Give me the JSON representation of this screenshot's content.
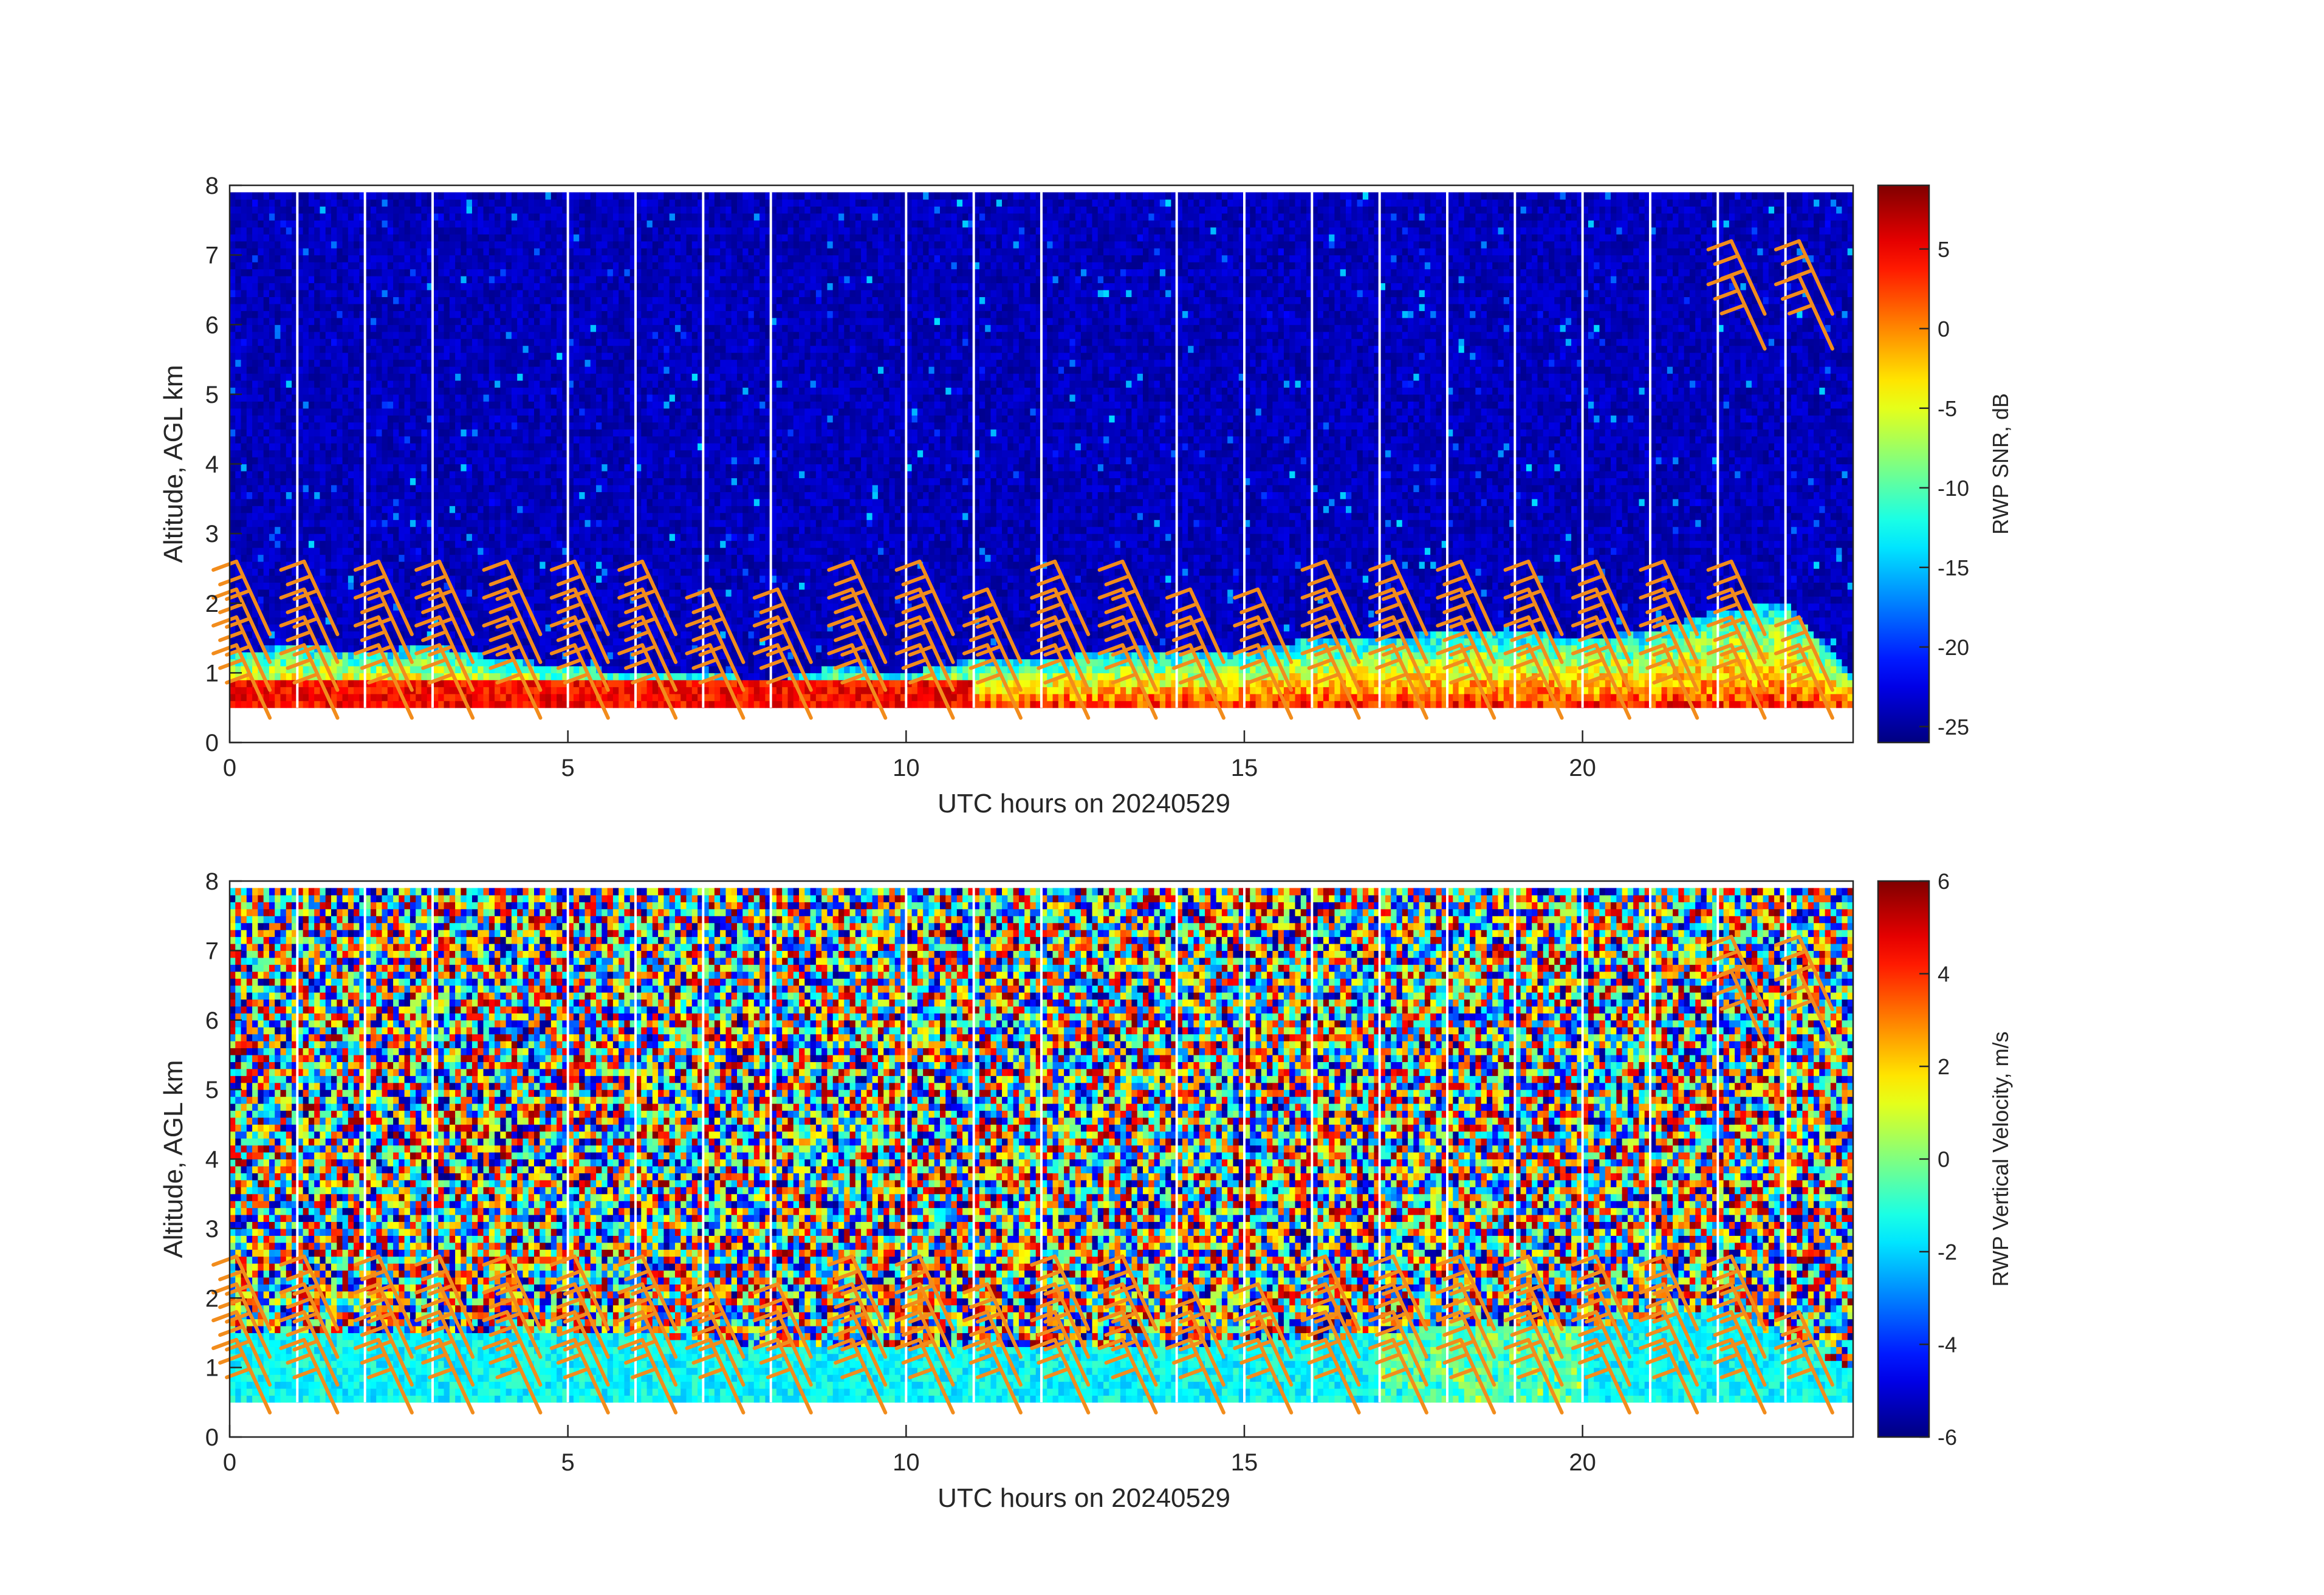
{
  "figure": {
    "colormap": "jet",
    "wind_barb_color": "#f28c1c",
    "gap_line_color": "#ffffff",
    "no_data_color": "#ffffff"
  },
  "chart_data": [
    {
      "type": "heatmap",
      "xlabel": "UTC hours on 20240529",
      "ylabel": "Altitude, AGL km",
      "xlim": [
        0,
        24
      ],
      "ylim": [
        0,
        8
      ],
      "xticks": [
        "0",
        "5",
        "10",
        "15",
        "20"
      ],
      "yticks": [
        "0",
        "1",
        "2",
        "3",
        "4",
        "5",
        "6",
        "7",
        "8"
      ],
      "colorbar_label": "RWP SNR, dB",
      "colorbar_ticks": [
        "5",
        "0",
        "-5",
        "-10",
        "-15",
        "-20",
        "-25"
      ],
      "colorbar_tick_values": [
        5,
        0,
        -5,
        -10,
        -15,
        -20,
        -25
      ],
      "colorbar_range": [
        -26,
        9
      ],
      "data_altitude_range_km": [
        0.5,
        7.9
      ],
      "gap_times_hours": [
        1,
        2,
        3,
        5,
        6,
        7,
        8,
        10,
        11,
        12,
        14,
        15,
        16,
        17,
        18,
        19,
        20,
        21,
        22,
        23
      ],
      "low_layer_top_km": [
        1.3,
        1.4,
        1.3,
        1.4,
        1.2,
        1.1,
        1.0,
        1.0,
        0.9,
        1.1,
        1.0,
        1.2,
        1.2,
        1.3,
        1.3,
        1.3,
        1.5,
        1.5,
        1.6,
        1.6,
        1.5,
        1.6,
        1.9,
        2.0,
        1.0
      ],
      "background_snr_db": -24,
      "wind_barbs": [
        {
          "t": 0.1,
          "z": [
            2.6,
            2.2,
            1.8,
            1.4
          ]
        },
        {
          "t": 1.1,
          "z": [
            2.6,
            2.2,
            1.8,
            1.4
          ]
        },
        {
          "t": 2.2,
          "z": [
            2.6,
            2.2,
            1.8,
            1.4
          ]
        },
        {
          "t": 3.1,
          "z": [
            2.6,
            2.2,
            1.8,
            1.4
          ]
        },
        {
          "t": 4.1,
          "z": [
            2.6,
            2.2,
            1.8,
            1.4
          ]
        },
        {
          "t": 5.1,
          "z": [
            2.6,
            2.2,
            1.8,
            1.4
          ]
        },
        {
          "t": 6.1,
          "z": [
            2.6,
            2.2,
            1.8,
            1.4
          ]
        },
        {
          "t": 7.1,
          "z": [
            2.2,
            1.8,
            1.4
          ]
        },
        {
          "t": 8.1,
          "z": [
            2.2,
            1.8,
            1.4
          ]
        },
        {
          "t": 9.2,
          "z": [
            2.6,
            2.2,
            1.8,
            1.4
          ]
        },
        {
          "t": 10.2,
          "z": [
            2.6,
            2.2,
            1.8,
            1.4
          ]
        },
        {
          "t": 11.2,
          "z": [
            2.2,
            1.8,
            1.4
          ]
        },
        {
          "t": 12.2,
          "z": [
            2.6,
            2.2,
            1.8,
            1.4
          ]
        },
        {
          "t": 13.2,
          "z": [
            2.6,
            2.2,
            1.8,
            1.4
          ]
        },
        {
          "t": 14.2,
          "z": [
            2.2,
            1.8,
            1.4
          ]
        },
        {
          "t": 15.2,
          "z": [
            2.2,
            1.8,
            1.4
          ]
        },
        {
          "t": 16.2,
          "z": [
            2.6,
            2.2,
            1.8,
            1.4
          ]
        },
        {
          "t": 17.2,
          "z": [
            2.6,
            2.2,
            1.8,
            1.4
          ]
        },
        {
          "t": 18.2,
          "z": [
            2.6,
            2.2,
            1.8,
            1.4
          ]
        },
        {
          "t": 19.2,
          "z": [
            2.6,
            2.2,
            1.8,
            1.4
          ]
        },
        {
          "t": 20.2,
          "z": [
            2.6,
            2.2,
            1.8,
            1.4
          ]
        },
        {
          "t": 21.2,
          "z": [
            2.6,
            2.2,
            1.8,
            1.4
          ]
        },
        {
          "t": 22.2,
          "z": [
            7.2,
            6.7,
            2.6,
            2.2,
            1.8,
            1.4
          ]
        },
        {
          "t": 23.2,
          "z": [
            7.2,
            6.7,
            1.8,
            1.4
          ]
        }
      ]
    },
    {
      "type": "heatmap",
      "xlabel": "UTC hours on 20240529",
      "ylabel": "Altitude, AGL km",
      "xlim": [
        0,
        24
      ],
      "ylim": [
        0,
        8
      ],
      "xticks": [
        "0",
        "5",
        "10",
        "15",
        "20"
      ],
      "yticks": [
        "0",
        "1",
        "2",
        "3",
        "4",
        "5",
        "6",
        "7",
        "8"
      ],
      "colorbar_label": "RWP Vertical Velocity, m/s",
      "colorbar_ticks": [
        "6",
        "4",
        "2",
        "0",
        "-2",
        "-4",
        "-6"
      ],
      "colorbar_tick_values": [
        6,
        4,
        2,
        0,
        -2,
        -4,
        -6
      ],
      "colorbar_range": [
        -6,
        6
      ],
      "data_altitude_range_km": [
        0.5,
        7.9
      ],
      "gap_times_hours": [
        1,
        2,
        3,
        5,
        6,
        7,
        8,
        10,
        11,
        12,
        14,
        15,
        16,
        17,
        18,
        19,
        20,
        21,
        22,
        23
      ],
      "low_layer_top_km": [
        1.5,
        1.5,
        1.5,
        1.5,
        1.5,
        1.5,
        1.5,
        1.4,
        1.3,
        1.3,
        1.3,
        1.3,
        1.3,
        1.3,
        1.3,
        1.4,
        1.4,
        1.5,
        1.6,
        1.6,
        1.6,
        1.7,
        1.9,
        1.4,
        1.0
      ],
      "low_layer_velocity_ms": -1.5,
      "noise_velocity_range_ms": [
        -6,
        6
      ],
      "wind_barbs": [
        {
          "t": 0.1,
          "z": [
            2.6,
            2.2,
            1.8,
            1.4
          ]
        },
        {
          "t": 1.1,
          "z": [
            2.6,
            2.2,
            1.8,
            1.4
          ]
        },
        {
          "t": 2.2,
          "z": [
            2.6,
            2.2,
            1.8,
            1.4
          ]
        },
        {
          "t": 3.1,
          "z": [
            2.6,
            2.2,
            1.8,
            1.4
          ]
        },
        {
          "t": 4.1,
          "z": [
            2.6,
            2.2,
            1.8,
            1.4
          ]
        },
        {
          "t": 5.1,
          "z": [
            2.6,
            2.2,
            1.8,
            1.4
          ]
        },
        {
          "t": 6.1,
          "z": [
            2.6,
            2.2,
            1.8,
            1.4
          ]
        },
        {
          "t": 7.1,
          "z": [
            2.2,
            1.8,
            1.4
          ]
        },
        {
          "t": 8.1,
          "z": [
            2.2,
            1.8,
            1.4
          ]
        },
        {
          "t": 9.2,
          "z": [
            2.6,
            2.2,
            1.8,
            1.4
          ]
        },
        {
          "t": 10.2,
          "z": [
            2.6,
            2.2,
            1.8,
            1.4
          ]
        },
        {
          "t": 11.2,
          "z": [
            2.2,
            1.8,
            1.4
          ]
        },
        {
          "t": 12.2,
          "z": [
            2.6,
            2.2,
            1.8,
            1.4
          ]
        },
        {
          "t": 13.2,
          "z": [
            2.6,
            2.2,
            1.8,
            1.4
          ]
        },
        {
          "t": 14.2,
          "z": [
            2.2,
            1.8,
            1.4
          ]
        },
        {
          "t": 15.2,
          "z": [
            2.2,
            1.8,
            1.4
          ]
        },
        {
          "t": 16.2,
          "z": [
            2.6,
            2.2,
            1.8,
            1.4
          ]
        },
        {
          "t": 17.2,
          "z": [
            2.6,
            2.2,
            1.8,
            1.4
          ]
        },
        {
          "t": 18.2,
          "z": [
            2.6,
            2.2,
            1.8,
            1.4
          ]
        },
        {
          "t": 19.2,
          "z": [
            2.6,
            2.2,
            1.8,
            1.4
          ]
        },
        {
          "t": 20.2,
          "z": [
            2.6,
            2.2,
            1.8,
            1.4
          ]
        },
        {
          "t": 21.2,
          "z": [
            2.6,
            2.2,
            1.8,
            1.4
          ]
        },
        {
          "t": 22.2,
          "z": [
            7.2,
            6.7,
            2.6,
            2.2,
            1.8,
            1.4
          ]
        },
        {
          "t": 23.2,
          "z": [
            7.2,
            6.7,
            1.8,
            1.4
          ]
        }
      ]
    }
  ]
}
